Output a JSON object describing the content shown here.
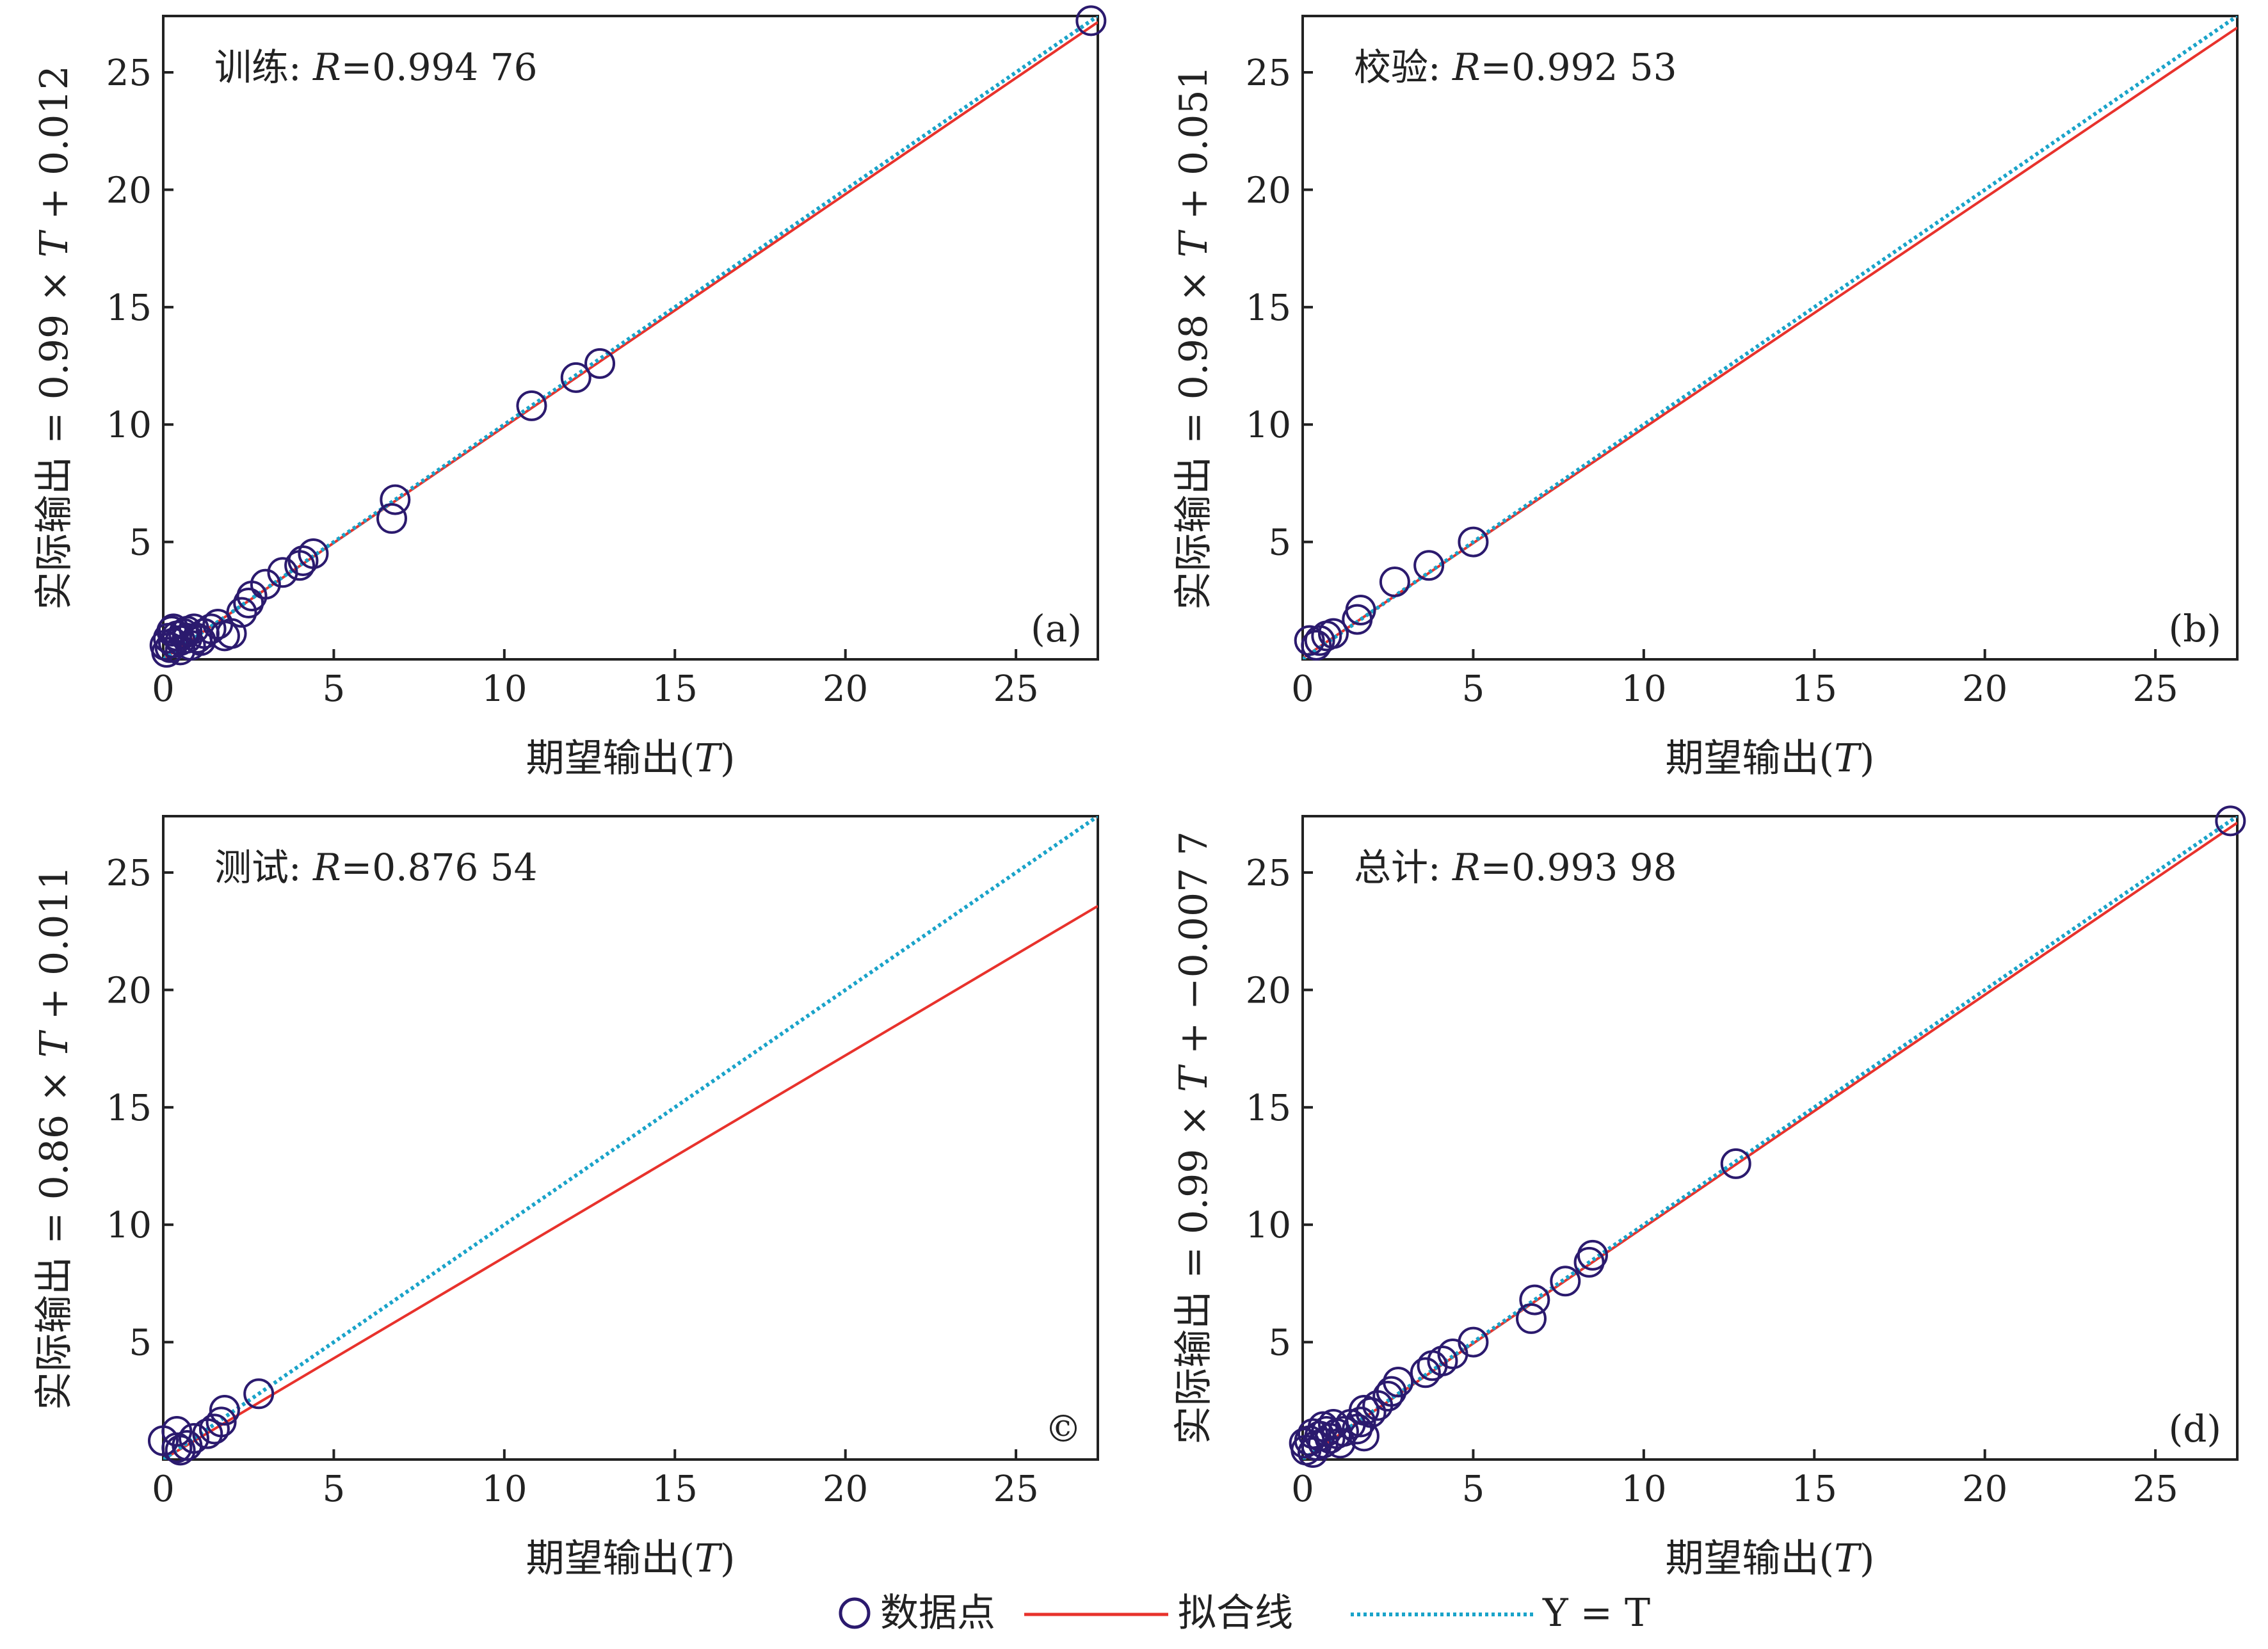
{
  "colors": {
    "marker": "#2b1a6e",
    "fit_line": "#e8322c",
    "identity_line": "#1aa3c9",
    "axis": "#222222"
  },
  "legend": {
    "items": [
      {
        "key": "points",
        "label": "数据点",
        "icon": "circle-marker-icon"
      },
      {
        "key": "fit",
        "label": "拟合线",
        "icon": "red-line-icon"
      },
      {
        "key": "identity",
        "label": "Y = T",
        "icon": "dotted-line-icon"
      }
    ]
  },
  "chart_data": [
    {
      "type": "scatter",
      "panel": "a",
      "tag": "(a)",
      "annotation": {
        "name": "训练: ",
        "r_symbol": "R",
        "r_value": "=0.994 76"
      },
      "xlabel": "期望输出(T)",
      "ylabel": "实际输出 = 0.99 × T + 0.012",
      "xlim": [
        0,
        27.4
      ],
      "ylim": [
        0,
        27.4
      ],
      "xticks": [
        0,
        5,
        10,
        15,
        20,
        25
      ],
      "yticks": [
        5,
        10,
        15,
        20,
        25
      ],
      "fit": {
        "slope": 0.99,
        "intercept": 0.012
      },
      "points": [
        [
          27.2,
          27.2
        ],
        [
          12.8,
          12.6
        ],
        [
          12.1,
          12.0
        ],
        [
          10.8,
          10.8
        ],
        [
          6.8,
          6.8
        ],
        [
          6.7,
          6.0
        ],
        [
          4.4,
          4.5
        ],
        [
          4.1,
          4.2
        ],
        [
          4.0,
          4.0
        ],
        [
          3.5,
          3.7
        ],
        [
          3.0,
          3.2
        ],
        [
          2.6,
          2.7
        ],
        [
          2.5,
          2.4
        ],
        [
          2.3,
          2.0
        ],
        [
          2.0,
          1.1
        ],
        [
          1.8,
          1.0
        ],
        [
          1.6,
          1.5
        ],
        [
          1.4,
          1.3
        ],
        [
          1.2,
          1.1
        ],
        [
          1.0,
          0.9
        ],
        [
          0.9,
          1.3
        ],
        [
          0.8,
          0.6
        ],
        [
          0.7,
          0.9
        ],
        [
          0.6,
          1.1
        ],
        [
          0.5,
          0.8
        ],
        [
          0.4,
          1.0
        ],
        [
          0.3,
          0.7
        ],
        [
          0.25,
          1.2
        ],
        [
          0.2,
          0.5
        ],
        [
          0.15,
          0.9
        ],
        [
          0.1,
          0.3
        ],
        [
          0.05,
          0.6
        ],
        [
          0.3,
          1.3
        ],
        [
          0.5,
          0.4
        ],
        [
          0.7,
          1.2
        ],
        [
          1.1,
          0.8
        ]
      ]
    },
    {
      "type": "scatter",
      "panel": "b",
      "tag": "(b)",
      "annotation": {
        "name": "校验: ",
        "r_symbol": "R",
        "r_value": "=0.992 53"
      },
      "xlabel": "期望输出(T)",
      "ylabel": "实际输出 = 0.98 × T + 0.051",
      "xlim": [
        0,
        27.4
      ],
      "ylim": [
        0,
        27.4
      ],
      "xticks": [
        0,
        5,
        10,
        15,
        20,
        25
      ],
      "yticks": [
        5,
        10,
        15,
        20,
        25
      ],
      "fit": {
        "slope": 0.98,
        "intercept": 0.051
      },
      "points": [
        [
          5.0,
          5.0
        ],
        [
          3.7,
          4.0
        ],
        [
          2.7,
          3.3
        ],
        [
          1.7,
          2.1
        ],
        [
          1.6,
          1.7
        ],
        [
          0.9,
          1.1
        ],
        [
          0.7,
          1.0
        ],
        [
          0.5,
          0.8
        ],
        [
          0.4,
          0.6
        ],
        [
          0.2,
          0.8
        ]
      ]
    },
    {
      "type": "scatter",
      "panel": "c",
      "tag": "©",
      "annotation": {
        "name": "测试: ",
        "r_symbol": "R",
        "r_value": "=0.876 54"
      },
      "xlabel": "期望输出(T)",
      "ylabel": "实际输出 = 0.86 × T + 0.011",
      "xlim": [
        0,
        27.4
      ],
      "ylim": [
        0,
        27.4
      ],
      "xticks": [
        0,
        5,
        10,
        15,
        20,
        25
      ],
      "yticks": [
        5,
        10,
        15,
        20,
        25
      ],
      "fit": {
        "slope": 0.86,
        "intercept": 0.011
      },
      "points": [
        [
          2.8,
          2.8
        ],
        [
          1.8,
          2.1
        ],
        [
          1.7,
          1.6
        ],
        [
          1.5,
          1.3
        ],
        [
          1.3,
          1.1
        ],
        [
          0.9,
          0.9
        ],
        [
          0.7,
          0.6
        ],
        [
          0.5,
          0.4
        ],
        [
          0.4,
          1.2
        ],
        [
          0.4,
          0.5
        ],
        [
          0.0,
          0.8
        ]
      ]
    },
    {
      "type": "scatter",
      "panel": "d",
      "tag": "(d)",
      "annotation": {
        "name": "总计: ",
        "r_symbol": "R",
        "r_value": "=0.993 98"
      },
      "xlabel": "期望输出(T)",
      "ylabel": "实际输出 = 0.99 × T + −0.007 7",
      "xlim": [
        0,
        27.4
      ],
      "ylim": [
        0,
        27.4
      ],
      "xticks": [
        0,
        5,
        10,
        15,
        20,
        25
      ],
      "yticks": [
        5,
        10,
        15,
        20,
        25
      ],
      "fit": {
        "slope": 0.99,
        "intercept": -0.0077
      },
      "points": [
        [
          27.2,
          27.2
        ],
        [
          12.7,
          12.6
        ],
        [
          8.5,
          8.7
        ],
        [
          8.4,
          8.4
        ],
        [
          7.7,
          7.6
        ],
        [
          6.8,
          6.8
        ],
        [
          6.7,
          6.0
        ],
        [
          5.0,
          5.0
        ],
        [
          4.4,
          4.5
        ],
        [
          4.1,
          4.2
        ],
        [
          3.8,
          4.0
        ],
        [
          3.6,
          3.7
        ],
        [
          2.8,
          3.3
        ],
        [
          2.6,
          2.9
        ],
        [
          2.5,
          2.7
        ],
        [
          2.2,
          2.3
        ],
        [
          2.0,
          2.0
        ],
        [
          1.8,
          2.1
        ],
        [
          1.7,
          1.6
        ],
        [
          1.6,
          1.3
        ],
        [
          1.8,
          1.0
        ],
        [
          1.4,
          1.5
        ],
        [
          1.2,
          1.2
        ],
        [
          1.0,
          1.1
        ],
        [
          0.9,
          1.5
        ],
        [
          0.8,
          0.9
        ],
        [
          0.7,
          1.2
        ],
        [
          0.6,
          0.7
        ],
        [
          0.5,
          1.0
        ],
        [
          0.4,
          0.6
        ],
        [
          0.3,
          1.1
        ],
        [
          0.2,
          0.8
        ],
        [
          0.1,
          0.4
        ],
        [
          0.05,
          0.7
        ],
        [
          0.3,
          0.3
        ],
        [
          0.6,
          1.4
        ],
        [
          1.1,
          0.7
        ]
      ]
    }
  ]
}
